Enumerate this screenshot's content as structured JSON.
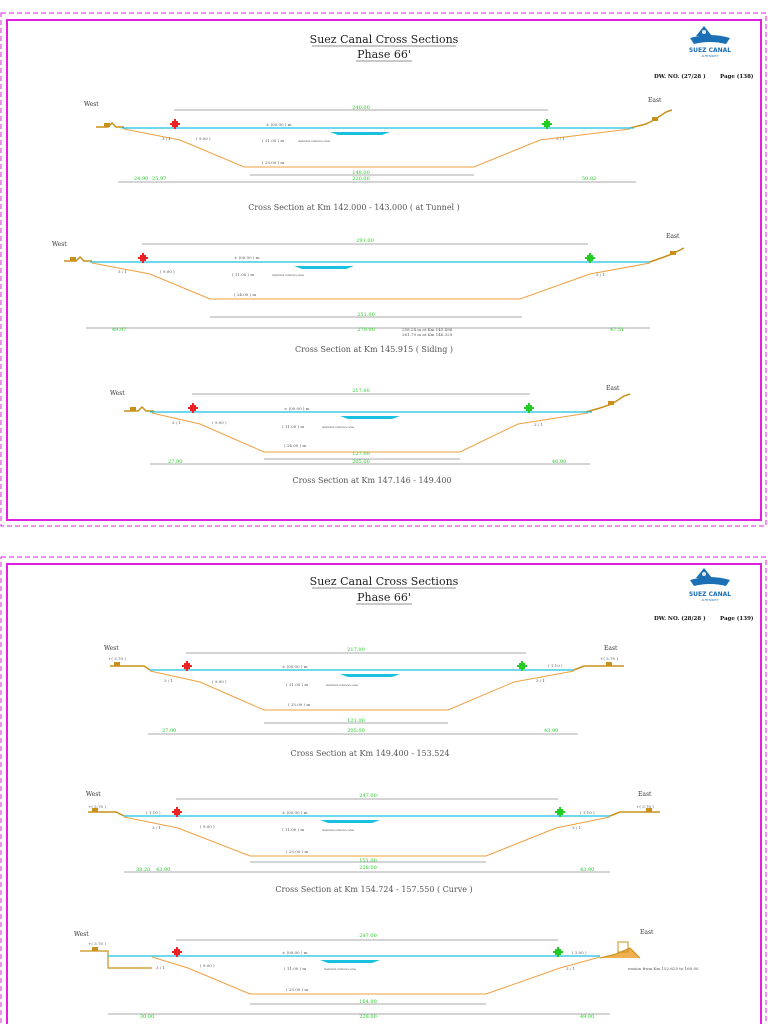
{
  "colors": {
    "frame": "#e020e0",
    "water": "#19c0e0",
    "bed": "#f0a040",
    "bank": "#c8901a",
    "nav_left": "#ee2222",
    "nav_right": "#22cc22"
  },
  "sheets": [
    {
      "title": "Suez Canal Cross Sections",
      "phase": "Phase 66'",
      "logo": {
        "name": "SUEZ CANAL",
        "sub": "AUTHORITY"
      },
      "dw_no": "DW. NO. (27/28 )",
      "page": "Page  (138)",
      "sections": [
        {
          "west": "West",
          "east": "East",
          "top_width": "240.00",
          "level_water": "± (00.00 ) m",
          "level_mid": "( 11.00 ) m",
          "level_mid_note": "maximum reference area",
          "level_bed": "( 25.00 ) m",
          "slope_left": "3 / 1",
          "slope_right": "3 / 1",
          "berm": "( 9.00 )",
          "bed_width": "148.00",
          "bed_total": "220.00",
          "left_dim": "24.90",
          "left_dim2": "25.97",
          "right_dim": "50.82",
          "extra_note": "",
          "extra_note2": "",
          "caption": "Cross  Section  at  Km  142.000 - 143.000 ( at Tunnel )"
        },
        {
          "west": "West",
          "east": "East",
          "top_width": "291.00",
          "level_water": "± (00.00 ) m",
          "level_mid": "( 11.00 ) m",
          "level_mid_note": "maximum reference area",
          "level_bed": "( 24.00 ) m",
          "slope_left": "3 / 1",
          "slope_right": "3 / 1",
          "berm": "( 9.00 )",
          "bed_width": "251.00",
          "bed_total": "279.00",
          "left_dim": "49.97",
          "left_dim2": "",
          "right_dim": "47.51",
          "extra_note": "258.24 m  at  Km  145.496",
          "extra_note2": "261.79 m  at  Km  146.329",
          "caption": "Cross  Section  at  Km  145.915 ( Siding )"
        },
        {
          "west": "West",
          "east": "East",
          "top_width": "217.00",
          "level_water": "± (00.00 ) m",
          "level_mid": "( 11.00 ) m",
          "level_mid_note": "maximum reference area",
          "level_bed": "( 24.00 ) m",
          "slope_left": "3 / 1",
          "slope_right": "3 / 1",
          "berm": "( 9.00 )",
          "bed_width": "127.00",
          "bed_total": "205.00",
          "left_dim": "27.90",
          "left_dim2": "",
          "right_dim": "46.00",
          "extra_note": "",
          "extra_note2": "",
          "caption": "Cross  Section  at  Km  147.146 - 149.400"
        }
      ]
    },
    {
      "title": "Suez Canal Cross Sections",
      "phase": "Phase 66'",
      "logo": {
        "name": "SUEZ CANAL",
        "sub": "AUTHORITY"
      },
      "dw_no": "DW. NO. (28/28 )",
      "page": "Page  (139)",
      "sections": [
        {
          "west": "West",
          "east": "East",
          "top_width": "217.00",
          "level_water": "± (00.00 ) m",
          "level_mid": "( 11.00 ) m",
          "level_mid_note": "maximum reference area",
          "level_bed": "( 25.00 ) m",
          "slope_left": "3 / 1",
          "slope_right": "3 / 1",
          "berm": "( 9.00 )",
          "bank_left": "+( 3.70 )",
          "bank_right": "+( 3.70 )",
          "berm_right": "( 1.10 )",
          "berm_left": "",
          "bed_width": "121.00",
          "bed_total": "205.00",
          "left_dim": "27.90",
          "left_dim2": "",
          "right_dim": "43.90",
          "caption": "Cross  Section  at  Km  149.400 - 153.524"
        },
        {
          "west": "West",
          "east": "East",
          "top_width": "247.00",
          "level_water": "± (00.00 ) m",
          "level_mid": "( 11.00 ) m",
          "level_mid_note": "maximum reference area",
          "level_bed": "( 25.00 ) m",
          "slope_left": "3 / 1",
          "slope_right": "3 / 1",
          "berm": "( 9.00 )",
          "bank_left": "+( 3.70 )",
          "bank_right": "+( 3.70 )",
          "berm_right": "( 1.10 )",
          "berm_left": "( 1.10 )",
          "bed_width": "151.00",
          "bed_total": "228.00",
          "left_dim": "38.20",
          "left_dim2": "43.90",
          "right_dim": "43.90",
          "caption": "Cross  Section  at  Km  154.724 - 157.550 ( Curve )"
        },
        {
          "west": "West",
          "east": "East",
          "top_width": "247.00",
          "level_water": "± (00.00 ) m",
          "level_mid": "( 11.00 ) m",
          "level_mid_note": "maximum reference area",
          "level_bed": "( 25.00 ) m",
          "slope_left": "3 / 1",
          "slope_right": "3 / 1",
          "berm": "( 9.00 )",
          "bank_left": "+( 3.70 )",
          "bank_right": "",
          "berm_right": "( 2.00 )",
          "berm_left": "",
          "bed_width": "164.00",
          "bed_total": "228.00",
          "left_dim": "30.00",
          "left_dim2": "",
          "right_dim": "49.00",
          "east_note": "ension from  Km  152.625 to 160.00",
          "caption": ""
        }
      ]
    }
  ]
}
